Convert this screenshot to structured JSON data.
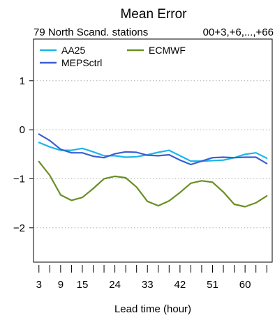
{
  "chart_data": {
    "type": "line",
    "title": "Mean Error",
    "subtitle_left": "79 North Scand. stations",
    "subtitle_right": "00+3,+6,...,+66",
    "xlabel": "Lead time (hour)",
    "ylabel": "",
    "xlim": [
      1.5,
      67.5
    ],
    "ylim": [
      -2.7,
      1.85
    ],
    "x": [
      3,
      6,
      9,
      12,
      15,
      18,
      21,
      24,
      27,
      30,
      33,
      36,
      39,
      42,
      45,
      48,
      51,
      54,
      57,
      60,
      63,
      66
    ],
    "x_ticks": [
      3,
      6,
      9,
      12,
      15,
      18,
      21,
      24,
      27,
      30,
      33,
      36,
      39,
      42,
      45,
      48,
      51,
      54,
      57,
      60,
      63,
      66
    ],
    "x_tick_labels": [
      {
        "value": 3,
        "label": "3"
      },
      {
        "value": 9,
        "label": "9"
      },
      {
        "value": 15,
        "label": "15"
      },
      {
        "value": 24,
        "label": "24"
      },
      {
        "value": 33,
        "label": "33"
      },
      {
        "value": 42,
        "label": "42"
      },
      {
        "value": 51,
        "label": "51"
      },
      {
        "value": 60,
        "label": "60"
      }
    ],
    "y_ticks": [
      {
        "value": 1,
        "label": "1"
      },
      {
        "value": 0,
        "label": "0"
      },
      {
        "value": -1,
        "label": "−1"
      },
      {
        "value": -2,
        "label": "−2"
      }
    ],
    "grid": "horizontal dotted",
    "legend_position": "top-left",
    "series": [
      {
        "name": "AA25",
        "color": "#1cb6e8",
        "values": [
          -0.26,
          -0.35,
          -0.42,
          -0.42,
          -0.38,
          -0.45,
          -0.53,
          -0.53,
          -0.56,
          -0.55,
          -0.51,
          -0.46,
          -0.42,
          -0.53,
          -0.64,
          -0.64,
          -0.63,
          -0.62,
          -0.57,
          -0.5,
          -0.47,
          -0.58
        ]
      },
      {
        "name": "MEPSctrl",
        "color": "#3b5fd3",
        "values": [
          -0.09,
          -0.22,
          -0.4,
          -0.47,
          -0.47,
          -0.54,
          -0.57,
          -0.49,
          -0.45,
          -0.46,
          -0.52,
          -0.53,
          -0.51,
          -0.62,
          -0.71,
          -0.64,
          -0.57,
          -0.56,
          -0.57,
          -0.56,
          -0.56,
          -0.69
        ]
      },
      {
        "name": "ECMWF",
        "color": "#6b8e23",
        "values": [
          -0.65,
          -0.93,
          -1.33,
          -1.44,
          -1.38,
          -1.2,
          -1.0,
          -0.95,
          -0.98,
          -1.17,
          -1.46,
          -1.55,
          -1.45,
          -1.28,
          -1.09,
          -1.04,
          -1.07,
          -1.27,
          -1.52,
          -1.57,
          -1.49,
          -1.35
        ]
      }
    ]
  }
}
